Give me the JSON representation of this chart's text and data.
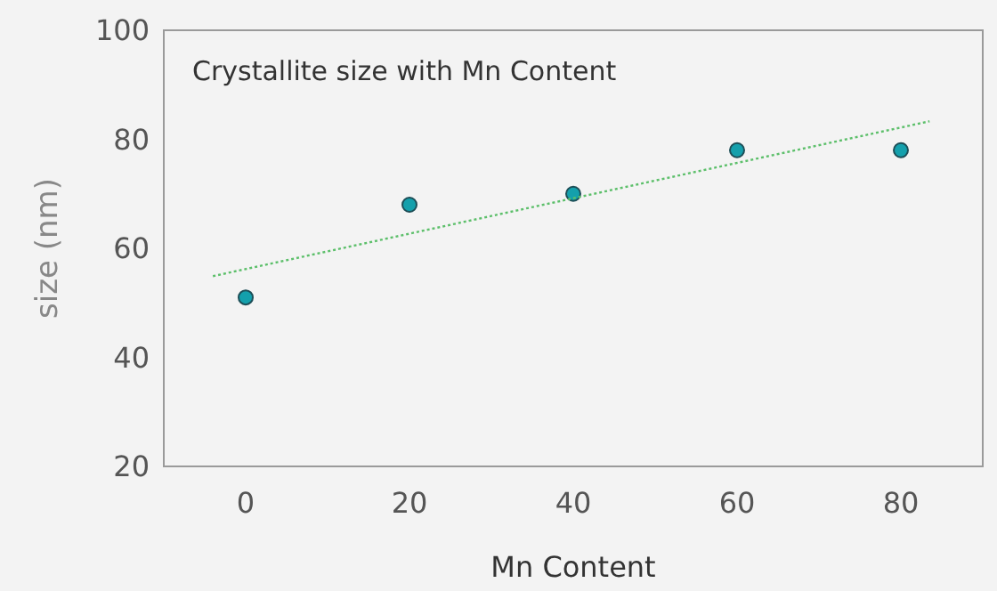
{
  "chart_data": {
    "type": "scatter",
    "title": "Crystallite size with Mn Content",
    "xlabel": "Mn Content",
    "ylabel": "size (nm)",
    "xlim": [
      -10,
      90
    ],
    "xticks": [
      0,
      20,
      40,
      60,
      80
    ],
    "ylim": [
      20,
      100
    ],
    "yticks": [
      20,
      40,
      60,
      80,
      100
    ],
    "marker": "circle",
    "series": [
      {
        "color": "#14a0ac",
        "x": [
          0,
          20,
          40,
          60,
          80
        ],
        "values": [
          51,
          68,
          70,
          78,
          78
        ]
      },
      {
        "type": "line",
        "color": "#5cbf6a",
        "line_style": "dotted",
        "marker": "none",
        "x": [
          -4,
          83.5
        ],
        "values": [
          54.9,
          83.3
        ]
      }
    ]
  }
}
